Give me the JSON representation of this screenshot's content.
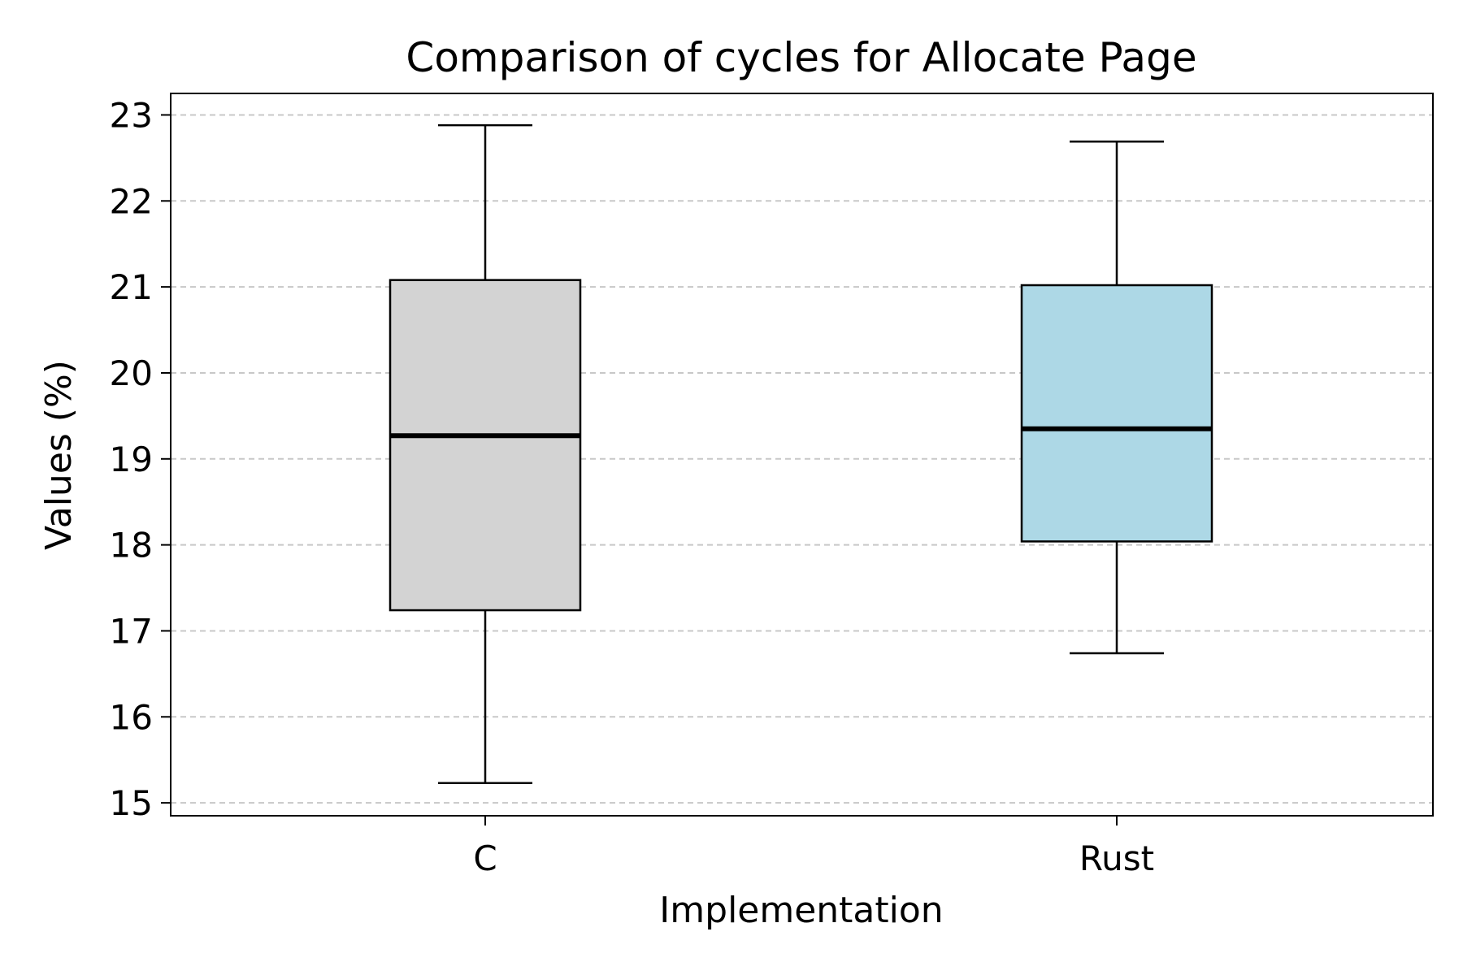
{
  "chart_data": {
    "type": "box",
    "title": "Comparison of cycles for Allocate Page",
    "xlabel": "Implementation",
    "ylabel": "Values (%)",
    "ylim": [
      14.85,
      23.25
    ],
    "yticks": [
      15,
      16,
      17,
      18,
      19,
      20,
      21,
      22,
      23
    ],
    "grid": "y-dashed",
    "categories": [
      "C",
      "Rust"
    ],
    "boxes": [
      {
        "category": "C",
        "whisker_low": 15.23,
        "q1": 17.24,
        "median": 19.27,
        "q3": 21.08,
        "whisker_high": 22.88,
        "color": "#d3d3d3"
      },
      {
        "category": "Rust",
        "whisker_low": 16.74,
        "q1": 18.04,
        "median": 19.35,
        "q3": 21.02,
        "whisker_high": 22.69,
        "color": "#add8e6"
      }
    ]
  }
}
